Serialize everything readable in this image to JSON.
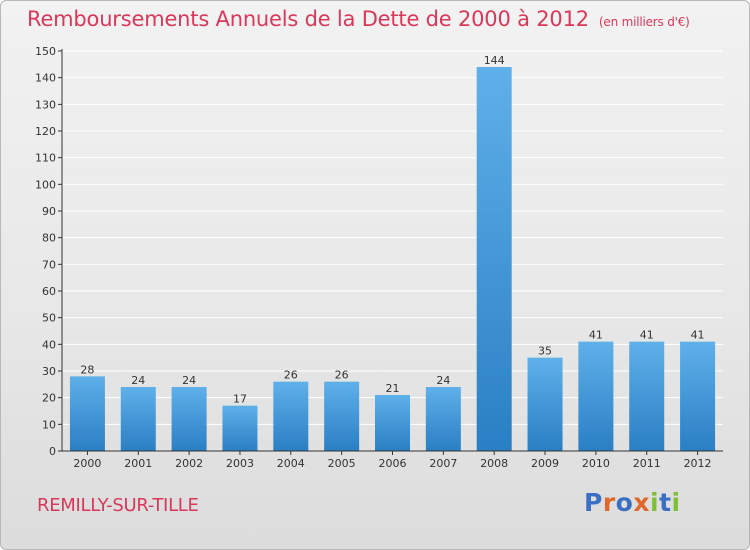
{
  "title": "Remboursements Annuels de la Dette de 2000 à 2012",
  "unit": "(en milliers d'€)",
  "city": "REMILLY-SUR-TILLE",
  "logo": {
    "text": "Proxiti",
    "colors": [
      "#3a6fc4",
      "#e0682a",
      "#3a6fc4",
      "#e0682a",
      "#7fbf3a",
      "#3a6fc4",
      "#7fbf3a"
    ]
  },
  "colors": {
    "title": "#d9385a",
    "bar_top": "#5fb0ea",
    "bar_bottom": "#2a7fc4",
    "grid": "#ffffff",
    "axis": "#333333"
  },
  "chart_data": {
    "type": "bar",
    "categories": [
      "2000",
      "2001",
      "2002",
      "2003",
      "2004",
      "2005",
      "2006",
      "2007",
      "2008",
      "2009",
      "2010",
      "2011",
      "2012"
    ],
    "values": [
      28,
      24,
      24,
      17,
      26,
      26,
      21,
      24,
      144,
      35,
      41,
      41,
      41
    ],
    "ylim": [
      0,
      150
    ],
    "yticks": [
      0,
      10,
      20,
      30,
      40,
      50,
      60,
      70,
      80,
      90,
      100,
      110,
      120,
      130,
      140,
      150
    ],
    "grid": true
  }
}
